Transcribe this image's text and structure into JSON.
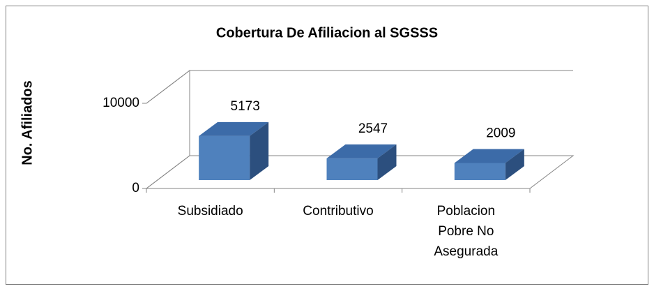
{
  "chart_data": {
    "type": "bar3d",
    "title": "Cobertura De Afiliacion al SGSSS",
    "y_label": "No. Afiliados",
    "categories": [
      "Subsidiado",
      "Contributivo",
      "Poblacion Pobre No Asegurada"
    ],
    "values": [
      5173,
      2547,
      2009
    ],
    "color": "#4f81bd",
    "ylim": [
      0,
      10000
    ],
    "yticks": [
      0,
      10000
    ],
    "grid": true
  }
}
